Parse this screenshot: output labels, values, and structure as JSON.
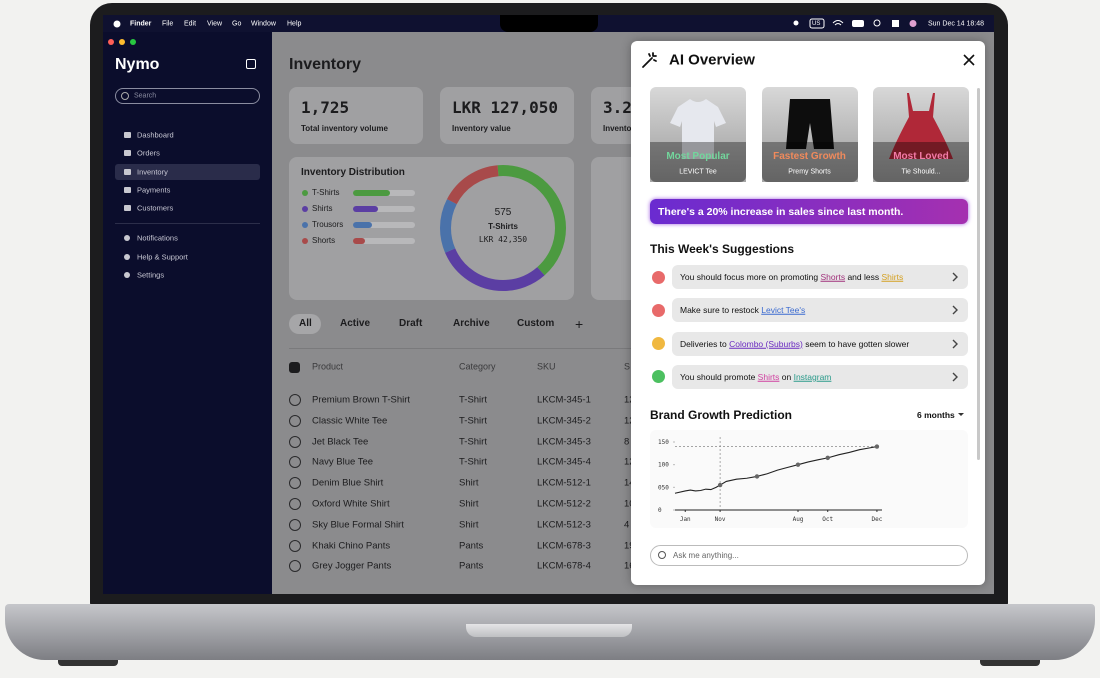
{
  "menubar": {
    "app": "Finder",
    "items": [
      "File",
      "Edit",
      "View",
      "Go",
      "Window",
      "Help"
    ],
    "input": "US",
    "clock": "Sun Dec 14 18:48"
  },
  "sidebar": {
    "brand": "Nymo",
    "search": "Search",
    "nav": [
      "Dashboard",
      "Orders",
      "Inventory",
      "Payments",
      "Customers"
    ],
    "active": 2,
    "nav2": [
      "Notifications",
      "Help & Support",
      "Settings"
    ]
  },
  "main": {
    "title": "Inventory",
    "stats": [
      {
        "value": "1,725",
        "label": "Total inventory volume"
      },
      {
        "value": "LKR 127,050",
        "label": "Inventory value"
      },
      {
        "value": "3.2",
        "label": "Invento"
      }
    ],
    "distribution": {
      "title": "Inventory Distribution",
      "items": [
        {
          "name": "T-Shirts",
          "color": "#4c9a40",
          "value": 60
        },
        {
          "name": "Shirts",
          "color": "#5b3ea3",
          "value": 40
        },
        {
          "name": "Trousors",
          "color": "#4a72aa",
          "value": 30
        },
        {
          "name": "Shorts",
          "color": "#a84a4a",
          "value": 20
        }
      ],
      "donut": [
        40,
        30,
        14,
        16
      ],
      "center": {
        "value": "575",
        "name": "T-Shirts",
        "amount": "LKR 42,350"
      }
    },
    "tabs": [
      "All",
      "Active",
      "Draft",
      "Archive",
      "Custom",
      "+"
    ],
    "table": {
      "headers": [
        "Product",
        "Category",
        "SKU",
        "S"
      ],
      "rows": [
        [
          "Premium Brown T-Shirt",
          "T-Shirt",
          "LKCM-345-1",
          "12"
        ],
        [
          "Classic White Tee",
          "T-Shirt",
          "LKCM-345-2",
          "12"
        ],
        [
          "Jet Black Tee",
          "T-Shirt",
          "LKCM-345-3",
          "8"
        ],
        [
          "Navy Blue Tee",
          "T-Shirt",
          "LKCM-345-4",
          "12"
        ],
        [
          "Denim Blue Shirt",
          "Shirt",
          "LKCM-512-1",
          "14"
        ],
        [
          "Oxford White Shirt",
          "Shirt",
          "LKCM-512-2",
          "10"
        ],
        [
          "Sky Blue Formal Shirt",
          "Shirt",
          "LKCM-512-3",
          "4"
        ],
        [
          "Khaki Chino Pants",
          "Pants",
          "LKCM-678-3",
          "19"
        ],
        [
          "Grey Jogger Pants",
          "Pants",
          "LKCM-678-4",
          "16"
        ]
      ]
    }
  },
  "panel": {
    "title": "AI Overview",
    "cards": [
      {
        "tag": "Most Popular",
        "name": "LEVICT Tee",
        "color": "#72d69c"
      },
      {
        "tag": "Fastest Growth",
        "name": "Premy Shorts",
        "color": "#f08a5c"
      },
      {
        "tag": "Most Loved",
        "name": "Tie Should...",
        "color": "#f27aa6"
      }
    ],
    "banner": "There's a 20% increase in sales since last month.",
    "suggestions_title": "This Week's Suggestions",
    "suggestions": [
      {
        "dot": "#e86a6a",
        "parts": [
          {
            "text": "You should focus more on promoting "
          },
          {
            "text": "Shorts",
            "color": "#a0307a"
          },
          {
            "text": " and less "
          },
          {
            "text": "Shirts",
            "color": "#d4a020"
          }
        ]
      },
      {
        "dot": "#e86a6a",
        "parts": [
          {
            "text": "Make sure to restock "
          },
          {
            "text": "Levict Tee's",
            "color": "#3a6ad0"
          }
        ]
      },
      {
        "dot": "#f0b840",
        "parts": [
          {
            "text": "Deliveries to "
          },
          {
            "text": "Colombo (Suburbs)",
            "color": "#6a2bc0"
          },
          {
            "text": " seem to have gotten slower"
          }
        ]
      },
      {
        "dot": "#4cc060",
        "parts": [
          {
            "text": "You should promote "
          },
          {
            "text": "Shirts",
            "color": "#d040a0"
          },
          {
            "text": " on "
          },
          {
            "text": "Instagram",
            "color": "#2a9a8a"
          }
        ]
      }
    ],
    "growth": {
      "title": "Brand Growth Prediction",
      "period": "6 months",
      "chart_data": {
        "type": "line",
        "x": [
          0,
          1,
          1.5,
          2,
          2.5,
          3,
          3.5,
          4,
          4.4,
          5,
          6,
          7,
          8,
          9,
          10,
          11,
          12,
          13,
          14,
          14.9,
          16,
          17,
          18,
          19,
          19.7
        ],
        "values": [
          37,
          42,
          44,
          42,
          43,
          46,
          45,
          50,
          55,
          63,
          68,
          70,
          74,
          80,
          88,
          94,
          100,
          106,
          111,
          115,
          122,
          127,
          133,
          137,
          140
        ],
        "markers": {
          "x": [
            4.4,
            8,
            12,
            14.9,
            19.7
          ],
          "values": [
            55,
            74,
            100,
            115,
            140
          ]
        },
        "crosshair_x": 4.4,
        "xlim": [
          0,
          20
        ],
        "ylim": [
          0,
          150
        ],
        "xticks": [
          {
            "value": 1,
            "label": "Jan"
          },
          {
            "value": 4.4,
            "label": "Nov"
          },
          {
            "value": 12,
            "label": "Aug"
          },
          {
            "value": 14.9,
            "label": "Oct"
          },
          {
            "value": 19.7,
            "label": "Dec"
          }
        ],
        "yticks": [
          0,
          {
            "value": 50,
            "label": "050"
          },
          100,
          150
        ],
        "color": "#222222"
      }
    },
    "input": "Ask me anything..."
  }
}
